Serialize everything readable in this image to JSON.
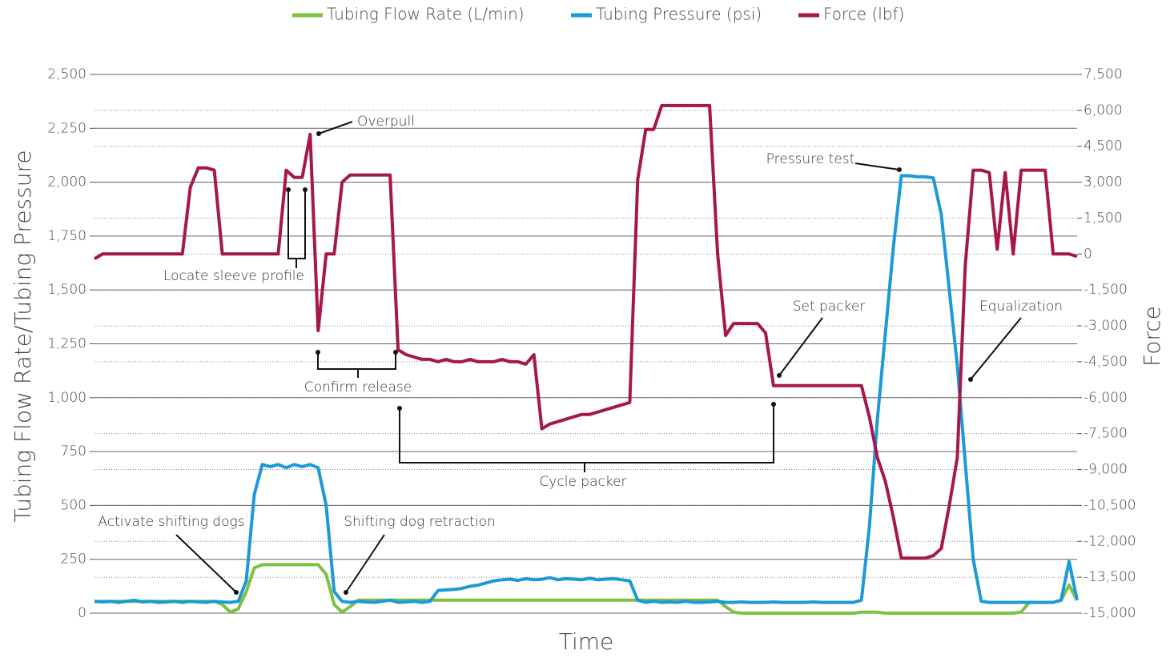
{
  "chart_data": {
    "type": "line",
    "x_label": "Time",
    "y_label": "Tubing Flow Rate/Tubing Pressure",
    "y2_label": "Force",
    "legend": "top",
    "grid": true,
    "ylim": [
      0,
      2500
    ],
    "yticks": [
      0,
      250,
      500,
      750,
      {
        "value": 1000,
        "label": "1,000"
      },
      {
        "value": 1250,
        "label": "1,250"
      },
      {
        "value": 1500,
        "label": "1,500"
      },
      {
        "value": 1750,
        "label": "1,750"
      },
      {
        "value": 2000,
        "label": "2,000"
      },
      {
        "value": 2250,
        "label": "2,250"
      },
      {
        "value": 2500,
        "label": "2,500"
      }
    ],
    "y2lim": [
      -15000,
      7500
    ],
    "y2ticks": [
      {
        "value": -15000,
        "label": "-15,000"
      },
      {
        "value": -13500,
        "label": "-13,500"
      },
      {
        "value": -12000,
        "label": "-12,000"
      },
      {
        "value": -10500,
        "label": "-10,500"
      },
      {
        "value": -9000,
        "label": "-9,000"
      },
      {
        "value": -7500,
        "label": "-7,500"
      },
      {
        "value": -6000,
        "label": "-6,000"
      },
      {
        "value": -4500,
        "label": "-4,500"
      },
      {
        "value": -3000,
        "label": "-3,000"
      },
      {
        "value": -1500,
        "label": "-1,500"
      },
      0,
      {
        "value": 1500,
        "label": "1,500"
      },
      {
        "value": 3000,
        "label": "3,000"
      },
      {
        "value": 4500,
        "label": "4,500"
      },
      {
        "value": 6000,
        "label": "6,000"
      },
      {
        "value": 7500,
        "label": "7,500"
      }
    ],
    "series": [
      {
        "name": "Tubing Flow Rate (L/min)",
        "color": "#7cc142",
        "axis": "y",
        "values": [
          55,
          55,
          55,
          55,
          55,
          55,
          55,
          55,
          55,
          55,
          55,
          55,
          55,
          55,
          55,
          55,
          40,
          5,
          20,
          100,
          210,
          225,
          225,
          225,
          225,
          225,
          225,
          225,
          225,
          180,
          40,
          5,
          30,
          60,
          60,
          60,
          60,
          60,
          60,
          60,
          60,
          60,
          60,
          60,
          60,
          60,
          60,
          60,
          60,
          60,
          60,
          60,
          60,
          60,
          60,
          60,
          60,
          60,
          60,
          60,
          60,
          60,
          60,
          60,
          60,
          60,
          60,
          60,
          60,
          60,
          60,
          60,
          60,
          60,
          60,
          60,
          60,
          60,
          60,
          30,
          5,
          0,
          0,
          0,
          0,
          0,
          0,
          0,
          0,
          0,
          0,
          0,
          0,
          0,
          0,
          0,
          5,
          5,
          5,
          0,
          0,
          0,
          0,
          0,
          0,
          0,
          0,
          0,
          0,
          0,
          0,
          0,
          0,
          0,
          0,
          0,
          5,
          50,
          50,
          50,
          50,
          60,
          130,
          60
        ]
      },
      {
        "name": "Tubing Pressure (psi)",
        "color": "#1b9ad7",
        "axis": "y",
        "values": [
          55,
          52,
          55,
          50,
          55,
          60,
          52,
          55,
          50,
          52,
          55,
          50,
          55,
          52,
          50,
          55,
          52,
          50,
          55,
          150,
          550,
          690,
          680,
          690,
          675,
          690,
          680,
          690,
          675,
          500,
          100,
          55,
          50,
          55,
          52,
          50,
          55,
          60,
          50,
          52,
          55,
          50,
          55,
          105,
          108,
          110,
          115,
          125,
          130,
          140,
          150,
          155,
          158,
          152,
          160,
          155,
          157,
          165,
          155,
          160,
          158,
          155,
          162,
          155,
          158,
          160,
          155,
          150,
          60,
          50,
          55,
          50,
          52,
          50,
          55,
          50,
          50,
          52,
          55,
          50,
          50,
          52,
          50,
          50,
          50,
          52,
          50,
          50,
          50,
          50,
          52,
          50,
          50,
          50,
          50,
          50,
          60,
          400,
          900,
          1300,
          1700,
          2030,
          2030,
          2025,
          2025,
          2020,
          1850,
          1500,
          1150,
          700,
          250,
          55,
          50,
          50,
          50,
          50,
          50,
          50,
          50,
          50,
          50,
          60,
          240,
          60
        ]
      },
      {
        "name": "Force (lbf)",
        "color": "#a6174b",
        "axis": "y2",
        "values": [
          -200,
          0,
          0,
          0,
          0,
          0,
          0,
          0,
          0,
          0,
          0,
          0,
          2800,
          3600,
          3600,
          3500,
          0,
          0,
          0,
          0,
          0,
          0,
          0,
          0,
          3500,
          3200,
          3200,
          5000,
          -3200,
          0,
          0,
          3000,
          3300,
          3300,
          3300,
          3300,
          3300,
          3300,
          -4000,
          -4200,
          -4300,
          -4400,
          -4400,
          -4500,
          -4400,
          -4500,
          -4500,
          -4400,
          -4500,
          -4500,
          -4500,
          -4400,
          -4500,
          -4500,
          -4600,
          -4200,
          -7300,
          -7100,
          -7000,
          -6900,
          -6800,
          -6700,
          -6700,
          -6600,
          -6500,
          -6400,
          -6300,
          -6200,
          3100,
          5200,
          5200,
          6200,
          6200,
          6200,
          6200,
          6200,
          6200,
          6200,
          0,
          -3400,
          -2900,
          -2900,
          -2900,
          -2900,
          -3300,
          -5500,
          -5500,
          -5500,
          -5500,
          -5500,
          -5500,
          -5500,
          -5500,
          -5500,
          -5500,
          -5500,
          -5500,
          -6800,
          -8500,
          -9500,
          -11000,
          -12700,
          -12700,
          -12700,
          -12700,
          -12600,
          -12300,
          -10500,
          -8500,
          -500,
          3500,
          3500,
          3400,
          200,
          3400,
          0,
          3500,
          3500,
          3500,
          3500,
          0,
          0,
          0,
          -100
        ]
      }
    ],
    "annotations": [
      {
        "text": "Overpull"
      },
      {
        "text": "Locate sleeve profile"
      },
      {
        "text": "Confirm release"
      },
      {
        "text": "Cycle packer"
      },
      {
        "text": "Set packer"
      },
      {
        "text": "Pressure test"
      },
      {
        "text": "Equalization"
      },
      {
        "text": "Activate shifting dogs"
      },
      {
        "text": "Shifting dog retraction"
      }
    ]
  }
}
